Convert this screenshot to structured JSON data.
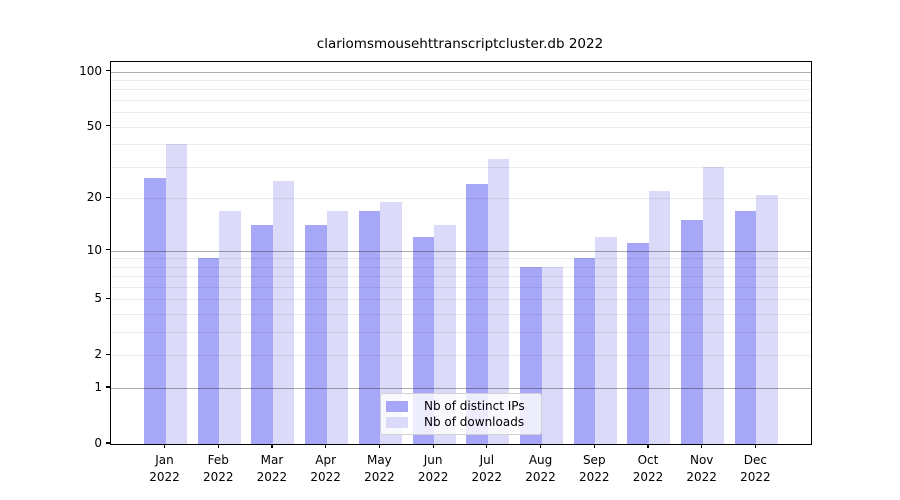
{
  "chart_data": {
    "type": "bar",
    "title": "clariomsmousehttranscriptcluster.db 2022",
    "categories": [
      "Jan 2022",
      "Feb 2022",
      "Mar 2022",
      "Apr 2022",
      "May 2022",
      "Jun 2022",
      "Jul 2022",
      "Aug 2022",
      "Sep 2022",
      "Oct 2022",
      "Nov 2022",
      "Dec 2022"
    ],
    "month_labels": [
      "Jan",
      "Feb",
      "Mar",
      "Apr",
      "May",
      "Jun",
      "Jul",
      "Aug",
      "Sep",
      "Oct",
      "Nov",
      "Dec"
    ],
    "year_label": "2022",
    "series": [
      {
        "name": "Nb of distinct IPs",
        "color": "#a7a7f7",
        "values": [
          26,
          9,
          14,
          14,
          17,
          12,
          24,
          8,
          9,
          11,
          15,
          17
        ]
      },
      {
        "name": "Nb of downloads",
        "color": "#dbdbf9",
        "values": [
          40,
          17,
          25,
          17,
          19,
          14,
          33,
          8,
          12,
          22,
          30,
          21
        ]
      }
    ],
    "yscale": "log1p",
    "ylim": [
      0,
      110
    ],
    "y_tick_values": [
      100,
      50,
      20,
      10,
      5,
      2,
      1,
      0
    ],
    "y_tick_labels": [
      "100",
      "50",
      "20",
      "10",
      "5",
      "2",
      "1",
      "0"
    ],
    "y_minor_grid_values": [
      2,
      3,
      4,
      5,
      6,
      7,
      8,
      9,
      20,
      30,
      40,
      50,
      60,
      70,
      80,
      90
    ],
    "y_major_grid_values": [
      1,
      10,
      100
    ],
    "grid": true,
    "legend_position": "lower center"
  }
}
